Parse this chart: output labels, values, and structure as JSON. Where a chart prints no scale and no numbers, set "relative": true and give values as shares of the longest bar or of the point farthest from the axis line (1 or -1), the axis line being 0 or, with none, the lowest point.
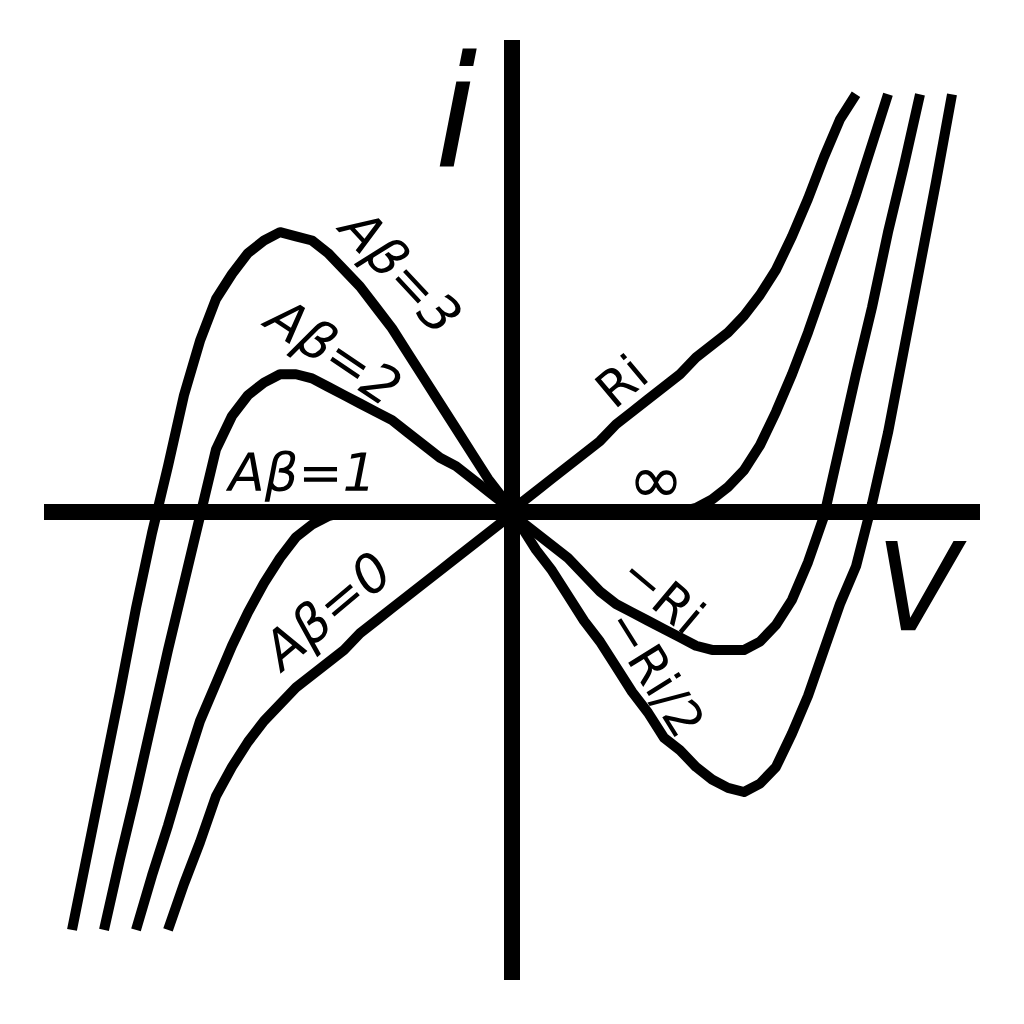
{
  "chart_data": {
    "type": "line",
    "relative": true,
    "xlabel": "V",
    "ylabel": "i",
    "tick_labels": false,
    "categories": [
      null,
      null,
      null,
      null,
      null,
      null,
      null,
      null,
      null,
      null,
      null,
      null,
      null,
      null,
      null,
      null,
      null,
      null,
      null,
      null,
      null,
      null,
      null,
      null,
      null,
      null,
      null,
      null,
      null,
      null,
      null,
      null,
      null,
      null,
      null,
      null,
      null,
      null,
      null,
      null,
      null,
      null,
      null,
      null,
      null,
      null,
      null,
      null,
      null,
      null,
      null,
      null,
      null,
      null,
      null,
      null
    ],
    "series": [
      {
        "name": "Aβ=0",
        "color": "#000000",
        "values": [
          null,
          null,
          null,
          null,
          null,
          null,
          -1.0,
          -0.89,
          -0.79,
          -0.68,
          -0.61,
          -0.55,
          -0.5,
          -0.46,
          -0.42,
          -0.39,
          -0.36,
          -0.33,
          -0.29,
          -0.26,
          -0.23,
          -0.2,
          -0.17,
          -0.14,
          -0.11,
          -0.08,
          -0.05,
          -0.02,
          0.02,
          0.05,
          0.08,
          0.11,
          0.14,
          0.17,
          0.21,
          0.24,
          0.27,
          0.3,
          0.33,
          0.37,
          0.4,
          0.43,
          0.47,
          0.52,
          0.58,
          0.66,
          0.75,
          0.85,
          0.94,
          1.0,
          null,
          null,
          null,
          null,
          null,
          null
        ]
      },
      {
        "name": "Aβ=1",
        "color": "#000000",
        "values": [
          null,
          null,
          null,
          null,
          -1.0,
          -0.87,
          -0.75,
          -0.62,
          -0.5,
          -0.41,
          -0.32,
          -0.24,
          -0.17,
          -0.11,
          -0.06,
          -0.03,
          -0.01,
          0,
          0,
          0,
          0,
          0,
          0,
          0,
          0,
          0,
          0,
          0,
          0,
          0,
          0,
          0,
          0,
          0,
          0,
          0,
          0,
          0,
          0,
          0.01,
          0.03,
          0.06,
          0.1,
          0.16,
          0.24,
          0.33,
          0.43,
          0.54,
          0.65,
          0.76,
          0.88,
          1.0,
          null,
          null,
          null,
          null
        ]
      },
      {
        "name": "Aβ=2",
        "color": "#000000",
        "values": [
          null,
          null,
          -1.0,
          -0.83,
          -0.67,
          -0.5,
          -0.33,
          -0.17,
          -0.01,
          0.15,
          0.23,
          0.28,
          0.31,
          0.33,
          0.33,
          0.32,
          0.3,
          0.28,
          0.26,
          0.24,
          0.22,
          0.19,
          0.16,
          0.13,
          0.11,
          0.08,
          0.05,
          0.02,
          -0.02,
          -0.05,
          -0.08,
          -0.11,
          -0.15,
          -0.19,
          -0.22,
          -0.24,
          -0.26,
          -0.28,
          -0.3,
          -0.32,
          -0.33,
          -0.33,
          -0.33,
          -0.31,
          -0.27,
          -0.21,
          -0.12,
          -0.01,
          0.16,
          0.33,
          0.49,
          0.67,
          0.83,
          1.0,
          null,
          null
        ]
      },
      {
        "name": "Aβ=3",
        "color": "#000000",
        "values": [
          -1.0,
          -0.81,
          -0.62,
          -0.43,
          -0.23,
          -0.05,
          0.11,
          0.28,
          0.41,
          0.51,
          0.57,
          0.62,
          0.65,
          0.67,
          0.66,
          0.65,
          0.62,
          0.58,
          0.54,
          0.49,
          0.44,
          0.38,
          0.32,
          0.26,
          0.2,
          0.14,
          0.08,
          0.03,
          -0.03,
          -0.09,
          -0.14,
          -0.2,
          -0.26,
          -0.31,
          -0.37,
          -0.43,
          -0.48,
          -0.54,
          -0.57,
          -0.61,
          -0.64,
          -0.66,
          -0.67,
          -0.65,
          -0.61,
          -0.53,
          -0.44,
          -0.33,
          -0.22,
          -0.13,
          0.02,
          0.19,
          0.39,
          0.59,
          0.79,
          1.0
        ]
      }
    ],
    "annotations": [
      "Ri",
      "∞",
      "−Ri",
      "−Ri/2"
    ]
  }
}
